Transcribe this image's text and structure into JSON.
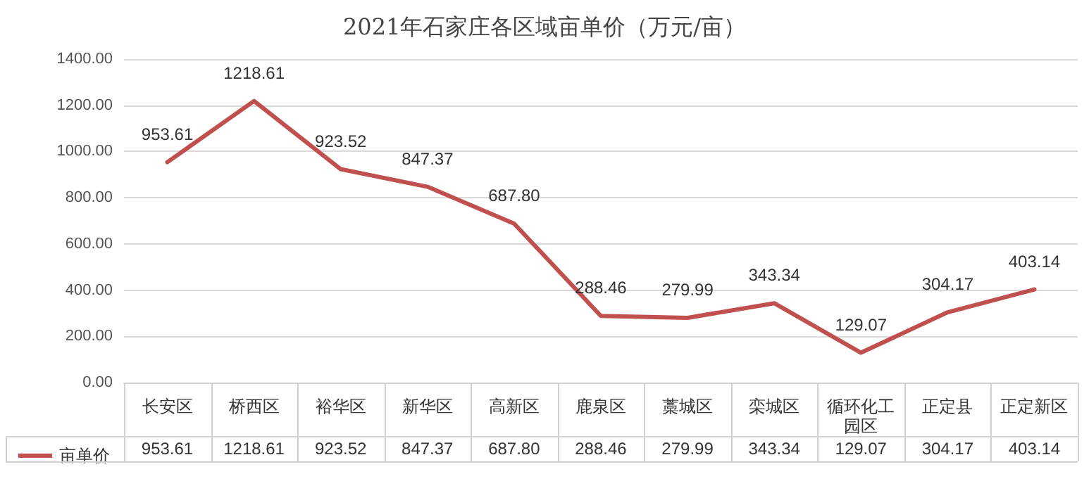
{
  "chart_data": {
    "type": "line",
    "title": "2021年石家庄各区域亩单价（万元/亩）",
    "categories": [
      "长安区",
      "桥西区",
      "裕华区",
      "新华区",
      "高新区",
      "鹿泉区",
      "藁城区",
      "栾城区",
      "循环化工园区",
      "正定县",
      "正定新区"
    ],
    "series": [
      {
        "name": "亩单价",
        "color": "#c0504d",
        "values": [
          953.61,
          1218.61,
          923.52,
          847.37,
          687.8,
          288.46,
          279.99,
          343.34,
          129.07,
          304.17,
          403.14
        ],
        "value_labels": [
          "953.61",
          "1218.61",
          "923.52",
          "847.37",
          "687.80",
          "288.46",
          "279.99",
          "343.34",
          "129.07",
          "304.17",
          "403.14"
        ]
      }
    ],
    "ylim": [
      0,
      1400
    ],
    "yticks": [
      {
        "value": 0,
        "label": "0.00"
      },
      {
        "value": 200,
        "label": "200.00"
      },
      {
        "value": 400,
        "label": "400.00"
      },
      {
        "value": 600,
        "label": "600.00"
      },
      {
        "value": 800,
        "label": "800.00"
      },
      {
        "value": 1000,
        "label": "1000.00"
      },
      {
        "value": 1200,
        "label": "1200.00"
      },
      {
        "value": 1400,
        "label": "1400.00"
      }
    ],
    "grid": "y",
    "legend": "bottom left",
    "marker": "none",
    "line_style": "solid"
  }
}
